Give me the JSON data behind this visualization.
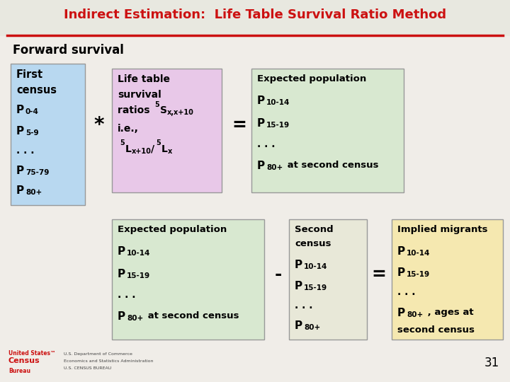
{
  "title": "Indirect Estimation:  Life Table Survival Ratio Method",
  "subtitle": "Forward survival",
  "bg_color": "#f0ede8",
  "title_color": "#cc1111",
  "title_bar_color": "#cc1111",
  "slide_number": "31",
  "box1_color": "#b8d8f0",
  "box2_color": "#e8c8e8",
  "box3_color": "#d8e8d0",
  "box4_color": "#d8e8d0",
  "box5_color": "#e8e8d8",
  "box6_color": "#f5e8b0",
  "edge_color": "#999999"
}
